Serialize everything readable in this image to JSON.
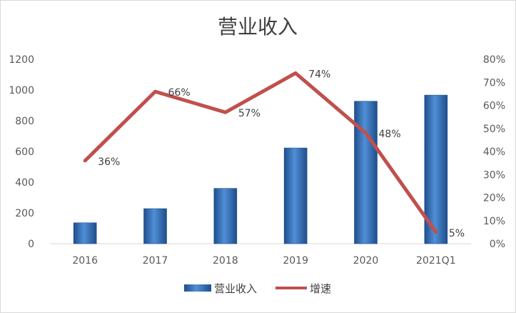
{
  "chart_data": {
    "type": "bar+line",
    "title": "营业收入",
    "categories": [
      "2016",
      "2017",
      "2018",
      "2019",
      "2020",
      "2021Q1"
    ],
    "series": [
      {
        "name": "营业收入",
        "type": "bar",
        "axis": "left",
        "values": [
          136,
          228,
          360,
          623,
          927,
          967
        ],
        "color": "#2e75b6"
      },
      {
        "name": "增速",
        "type": "line",
        "axis": "right",
        "values": [
          0.36,
          0.66,
          0.57,
          0.74,
          0.48,
          0.05
        ],
        "labels": [
          "36%",
          "66%",
          "57%",
          "74%",
          "48%",
          "5%"
        ],
        "color": "#c0504d"
      }
    ],
    "y_left": {
      "ylim": [
        0,
        1200
      ],
      "ticks": [
        "0",
        "200",
        "400",
        "600",
        "800",
        "1000",
        "1200"
      ]
    },
    "y_right": {
      "ylim": [
        0,
        0.8
      ],
      "ticks": [
        "0%",
        "10%",
        "20%",
        "30%",
        "40%",
        "50%",
        "60%",
        "70%",
        "80%"
      ]
    },
    "grid": false,
    "legend_position": "bottom"
  }
}
